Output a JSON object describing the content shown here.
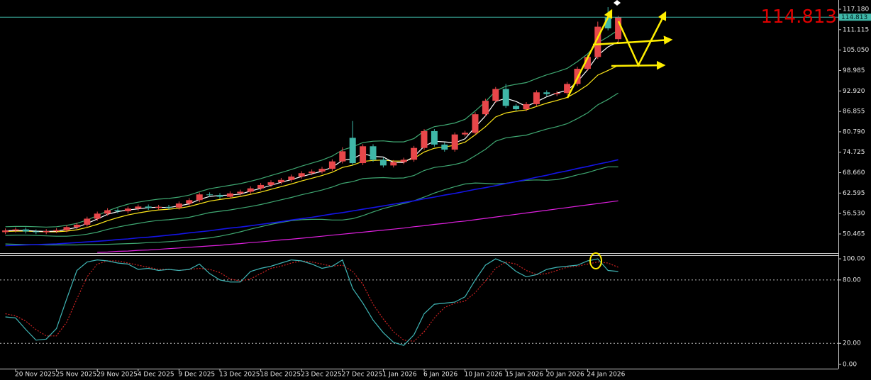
{
  "chart_data": [
    {
      "type": "candlestick",
      "categories": [
        null,
        "20 Nov 2025",
        null,
        null,
        null,
        "25 Nov 2025",
        null,
        null,
        null,
        "29 Nov 2025",
        null,
        null,
        null,
        "4 Dec 2025",
        null,
        null,
        null,
        "9 Dec 2025",
        null,
        null,
        null,
        "13 Dec 2025",
        null,
        null,
        null,
        "18 Dec 2025",
        null,
        null,
        null,
        "23 Dec 2025",
        null,
        null,
        null,
        "27 Dec 2025",
        null,
        null,
        null,
        "1 Jan 2026",
        null,
        null,
        null,
        "6 Jan 2026",
        null,
        null,
        null,
        "10 Jan 2026",
        null,
        null,
        null,
        "15 Jan 2026",
        null,
        null,
        null,
        "20 Jan 2026",
        null,
        null,
        null,
        "24 Jan 2026",
        null,
        null,
        null
      ],
      "open": [
        51.0,
        51.5,
        51.8,
        51.2,
        51.0,
        51.3,
        51.6,
        52.5,
        53.2,
        55.0,
        56.5,
        57.5,
        57.2,
        58.0,
        58.6,
        58.2,
        58.5,
        58.3,
        59.5,
        60.5,
        62.2,
        62.0,
        61.5,
        62.5,
        63.0,
        64.0,
        65.0,
        65.8,
        66.5,
        67.5,
        68.5,
        69.0,
        69.8,
        72.0,
        79.0,
        71.5,
        76.5,
        72.5,
        70.8,
        71.8,
        72.5,
        76.0,
        81.0,
        77.0,
        75.5,
        80.0,
        80.5,
        86.0,
        90.0,
        93.5,
        88.5,
        87.5,
        89.0,
        92.5,
        92.0,
        92.3,
        95.0,
        99.5,
        103.0,
        114.7,
        108.3
      ],
      "high": [
        52.1,
        52.4,
        52.4,
        51.8,
        51.9,
        52.2,
        53.1,
        53.8,
        55.6,
        57.1,
        58.1,
        58.1,
        58.6,
        59.2,
        59.2,
        59.1,
        59.1,
        60.1,
        61.1,
        62.8,
        62.8,
        62.6,
        63.1,
        63.6,
        64.6,
        65.6,
        66.4,
        67.1,
        68.1,
        69.1,
        69.6,
        70.4,
        72.6,
        76.2,
        84.0,
        77.1,
        77.1,
        73.1,
        72.4,
        73.1,
        76.6,
        81.6,
        81.6,
        77.6,
        80.6,
        81.1,
        86.6,
        90.6,
        94.1,
        95.0,
        89.1,
        89.6,
        93.1,
        93.1,
        92.9,
        95.6,
        100.1,
        103.6,
        113.5,
        117.8,
        115.2
      ],
      "low": [
        50.4,
        50.9,
        50.6,
        50.4,
        50.4,
        50.7,
        51.0,
        51.9,
        52.6,
        54.4,
        55.9,
        56.6,
        56.6,
        57.4,
        57.6,
        57.6,
        57.7,
        57.7,
        58.9,
        59.9,
        61.4,
        60.9,
        60.9,
        61.9,
        62.4,
        63.4,
        64.4,
        65.2,
        65.9,
        66.9,
        67.9,
        68.4,
        69.2,
        71.4,
        70.9,
        70.9,
        71.9,
        70.2,
        70.2,
        71.2,
        71.9,
        75.4,
        76.4,
        74.9,
        74.9,
        79.4,
        79.9,
        85.4,
        89.4,
        87.9,
        86.9,
        86.9,
        88.4,
        91.4,
        91.4,
        91.7,
        94.4,
        98.9,
        102.4,
        110.9,
        107.5
      ],
      "close": [
        51.5,
        51.8,
        51.2,
        51.0,
        51.3,
        51.6,
        52.5,
        53.2,
        55.0,
        56.5,
        57.5,
        57.2,
        58.0,
        58.6,
        58.2,
        58.5,
        58.3,
        59.5,
        60.5,
        62.2,
        62.0,
        61.5,
        62.5,
        63.0,
        64.0,
        65.0,
        65.8,
        66.5,
        67.5,
        68.5,
        69.0,
        69.8,
        72.0,
        75.0,
        71.5,
        76.5,
        72.5,
        70.8,
        71.8,
        72.5,
        76.0,
        81.0,
        77.0,
        75.5,
        80.0,
        80.5,
        86.0,
        90.0,
        93.5,
        88.5,
        87.5,
        89.0,
        92.5,
        92.0,
        92.3,
        95.0,
        99.5,
        103.0,
        112.0,
        111.5,
        114.813
      ],
      "up_color": "#e8474a",
      "down_color": "#3fb7a8",
      "series": [
        {
          "color": "#3fa872",
          "values": [
            47.5,
            47.4,
            47.3,
            47.3,
            47.2,
            47.2,
            47.2,
            47.2,
            47.3,
            47.3,
            47.4,
            47.5,
            47.6,
            47.7,
            47.9,
            48.0,
            48.2,
            48.4,
            48.7,
            49.0,
            49.3,
            49.8,
            50.4,
            51.1,
            51.9,
            52.6,
            53.3,
            53.9,
            54.4,
            54.7,
            54.8,
            54.8,
            54.6,
            54.6,
            55.0,
            55.9,
            57.0,
            58.0,
            58.8,
            59.5,
            60.3,
            61.4,
            62.6,
            63.6,
            64.5,
            65.3,
            65.6,
            65.5,
            65.3,
            65.5,
            66.0,
            66.4,
            66.5,
            66.4,
            66.6,
            67.2,
            68.0,
            68.7,
            69.6,
            70.4,
            70.4
          ]
        },
        {
          "color": "#e020e0",
          "values": [
            null,
            null,
            null,
            null,
            null,
            null,
            null,
            null,
            null,
            45.0,
            45.1,
            45.3,
            45.4,
            45.6,
            45.7,
            45.9,
            46.1,
            46.3,
            46.5,
            46.7,
            46.9,
            47.1,
            47.4,
            47.6,
            47.9,
            48.1,
            48.4,
            48.7,
            48.9,
            49.2,
            49.5,
            49.8,
            50.1,
            50.4,
            50.7,
            51.0,
            51.3,
            51.6,
            51.9,
            52.2,
            52.6,
            52.9,
            53.3,
            53.6,
            54.0,
            54.3,
            54.7,
            55.1,
            55.5,
            55.9,
            56.3,
            56.7,
            57.1,
            57.5,
            57.9,
            58.3,
            58.7,
            59.1,
            59.5,
            59.9,
            60.3
          ]
        },
        {
          "color": "#1414e6",
          "values": [
            47.0,
            47.1,
            47.2,
            47.3,
            47.4,
            47.5,
            47.7,
            47.9,
            48.1,
            48.3,
            48.5,
            48.8,
            49.0,
            49.3,
            49.5,
            49.8,
            50.1,
            50.4,
            50.8,
            51.1,
            51.4,
            51.8,
            52.2,
            52.5,
            52.9,
            53.3,
            53.7,
            54.1,
            54.6,
            55.0,
            55.4,
            55.9,
            56.4,
            56.8,
            57.3,
            57.8,
            58.3,
            58.8,
            59.3,
            59.8,
            60.3,
            60.9,
            61.4,
            62.0,
            62.5,
            63.1,
            63.7,
            64.2,
            64.8,
            65.4,
            66.0,
            66.6,
            67.3,
            67.9,
            68.6,
            69.2,
            69.9,
            70.5,
            71.2,
            71.8,
            72.5
          ]
        },
        {
          "color": "#3fa872",
          "values": [
            50.0,
            50.1,
            50.1,
            50.0,
            49.9,
            49.8,
            49.8,
            50.0,
            50.4,
            51.0,
            51.8,
            52.5,
            53.1,
            53.6,
            54.1,
            54.5,
            54.7,
            55.0,
            55.4,
            56.1,
            56.8,
            57.2,
            57.6,
            58.1,
            58.6,
            59.2,
            59.9,
            60.6,
            61.3,
            62.1,
            62.8,
            63.5,
            64.4,
            65.5,
            66.0,
            66.9,
            67.1,
            67.2,
            67.0,
            67.1,
            67.8,
            69.3,
            70.2,
            70.6,
            71.1,
            71.9,
            73.7,
            75.6,
            78.0,
            79.0,
            79.4,
            79.8,
            80.7,
            81.6,
            82.3,
            83.2,
            84.7,
            86.4,
            88.8,
            90.4,
            92.3
          ]
        },
        {
          "color": "#3fa872",
          "values": [
            52.6,
            52.7,
            52.7,
            52.6,
            52.5,
            52.6,
            53.0,
            53.6,
            54.6,
            55.9,
            57.3,
            58.4,
            59.3,
            59.9,
            60.4,
            60.8,
            61.0,
            61.4,
            62.0,
            63.0,
            63.9,
            64.4,
            64.9,
            65.4,
            66.1,
            66.9,
            67.8,
            68.7,
            69.6,
            70.6,
            71.5,
            72.4,
            73.6,
            75.4,
            76.3,
            77.6,
            78.0,
            78.1,
            77.8,
            77.8,
            78.8,
            81.0,
            82.3,
            82.8,
            83.4,
            84.5,
            87.0,
            89.7,
            92.9,
            94.3,
            94.9,
            95.4,
            96.6,
            97.7,
            98.6,
            99.6,
            101.6,
            103.9,
            107.2,
            109.0,
            111.0
          ]
        },
        {
          "color": "#ffe81a",
          "values": [
            51.2,
            51.3,
            51.3,
            51.2,
            51.1,
            51.1,
            51.3,
            51.7,
            52.4,
            53.3,
            54.4,
            55.3,
            56.1,
            56.7,
            57.2,
            57.6,
            57.8,
            58.1,
            58.6,
            59.4,
            60.2,
            60.7,
            61.1,
            61.6,
            62.2,
            62.9,
            63.7,
            64.5,
            65.3,
            66.2,
            67.0,
            67.8,
            68.8,
            70.2,
            70.9,
            72.0,
            72.3,
            72.4,
            72.1,
            72.1,
            72.9,
            74.8,
            75.9,
            76.3,
            76.8,
            77.7,
            79.9,
            82.3,
            85.2,
            86.4,
            86.9,
            87.3,
            88.3,
            89.3,
            90.1,
            91.0,
            92.7,
            94.7,
            97.6,
            99.0,
            100.5
          ]
        },
        {
          "color": "#ffffff",
          "values": [
            51.4,
            51.5,
            51.5,
            51.3,
            51.2,
            51.3,
            51.8,
            52.4,
            53.6,
            54.9,
            56.3,
            57.1,
            57.6,
            57.9,
            58.3,
            58.4,
            58.3,
            58.8,
            59.4,
            60.7,
            61.6,
            61.9,
            62.0,
            62.3,
            63.2,
            64.0,
            64.9,
            65.8,
            66.6,
            67.5,
            68.3,
            69.1,
            70.3,
            72.3,
            72.8,
            74.3,
            73.5,
            73.3,
            71.7,
            71.7,
            73.4,
            76.5,
            78.0,
            77.8,
            77.5,
            78.7,
            82.2,
            85.5,
            89.8,
            90.7,
            89.8,
            88.3,
            89.7,
            91.2,
            92.3,
            93.1,
            95.6,
            99.2,
            103.5,
            106.0,
            107.5
          ]
        }
      ],
      "last_price": 114.813,
      "last_price_color": "#3fb7a8",
      "last_price_big_color": "#e00000",
      "ylim": [
        44.57,
        119.92
      ],
      "yticks": [
        {
          "value": 117.18,
          "label": "117.180"
        },
        {
          "value": 111.115,
          "label": "111.115"
        },
        {
          "value": 105.05,
          "label": "105.050"
        },
        {
          "value": 98.985,
          "label": "98.985"
        },
        {
          "value": 92.92,
          "label": "92.920"
        },
        {
          "value": 86.855,
          "label": "86.855"
        },
        {
          "value": 80.79,
          "label": "80.790"
        },
        {
          "value": 74.725,
          "label": "74.725"
        },
        {
          "value": 68.66,
          "label": "68.660"
        },
        {
          "value": 62.595,
          "label": "62.595"
        },
        {
          "value": 56.53,
          "label": "56.530"
        },
        {
          "value": 50.465,
          "label": "50.465"
        }
      ]
    },
    {
      "type": "line",
      "series": [
        {
          "color": "#cc2222",
          "dash": true,
          "values": [
            48,
            46,
            41,
            33,
            27,
            27,
            40,
            62,
            83,
            95,
            98,
            98,
            96,
            94,
            92,
            90,
            90,
            89,
            90,
            91,
            90,
            87,
            81,
            79,
            81,
            86,
            91,
            93,
            96,
            98,
            97,
            95,
            93,
            94,
            88,
            76,
            57,
            43,
            31,
            23,
            22,
            31,
            44,
            54,
            58,
            60,
            68,
            79,
            91,
            97,
            95,
            89,
            85,
            86,
            89,
            92,
            93,
            95,
            97,
            96,
            92
          ]
        },
        {
          "color": "#3fb5b5",
          "dash": false,
          "values": [
            45,
            44,
            33,
            23,
            24,
            34,
            62,
            89,
            97,
            99,
            98,
            96,
            95,
            90,
            91,
            89,
            90,
            89,
            90,
            95,
            86,
            80,
            78,
            78,
            88,
            91,
            93,
            96,
            99,
            98,
            95,
            91,
            93,
            99,
            72,
            58,
            42,
            30,
            21,
            18,
            28,
            48,
            57,
            58,
            59,
            64,
            80,
            94,
            100,
            96,
            88,
            83,
            85,
            90,
            92,
            93,
            94,
            98,
            100,
            89,
            88
          ]
        }
      ],
      "levels": [
        80,
        20
      ],
      "ylim": [
        -4,
        103.4
      ],
      "yticks": [
        {
          "value": 100,
          "label": "100.00"
        },
        {
          "value": 80,
          "label": "80.00"
        },
        {
          "value": 20,
          "label": "20.00"
        },
        {
          "value": 0,
          "label": "0.00"
        }
      ]
    }
  ]
}
